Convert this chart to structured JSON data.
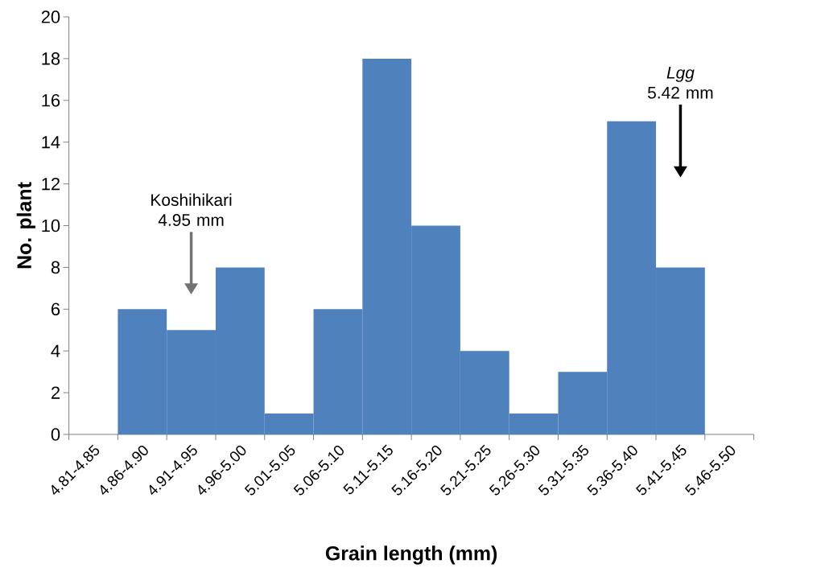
{
  "chart_data": {
    "type": "bar",
    "xlabel": "Grain length (mm)",
    "ylabel": "No. plant",
    "categories": [
      "4.81-4.85",
      "4.86-4.90",
      "4.91-4.95",
      "4.96-5.00",
      "5.01-5.05",
      "5.06-5.10",
      "5.11-5.15",
      "5.16-5.20",
      "5.21-5.25",
      "5.26-5.30",
      "5.31-5.35",
      "5.36-5.40",
      "5.41-5.45",
      "5.46-5.50"
    ],
    "values": [
      null,
      6,
      5,
      8,
      1,
      6,
      18,
      10,
      4,
      1,
      3,
      15,
      8,
      null
    ],
    "color": "#4f81bd",
    "ylim": [
      0,
      20
    ],
    "yticks": [
      0,
      2,
      4,
      6,
      8,
      10,
      12,
      14,
      16,
      18,
      20
    ],
    "annotations": [
      "Koshihikari 4.95 mm",
      "*Lgg* 5.42 mm"
    ]
  }
}
